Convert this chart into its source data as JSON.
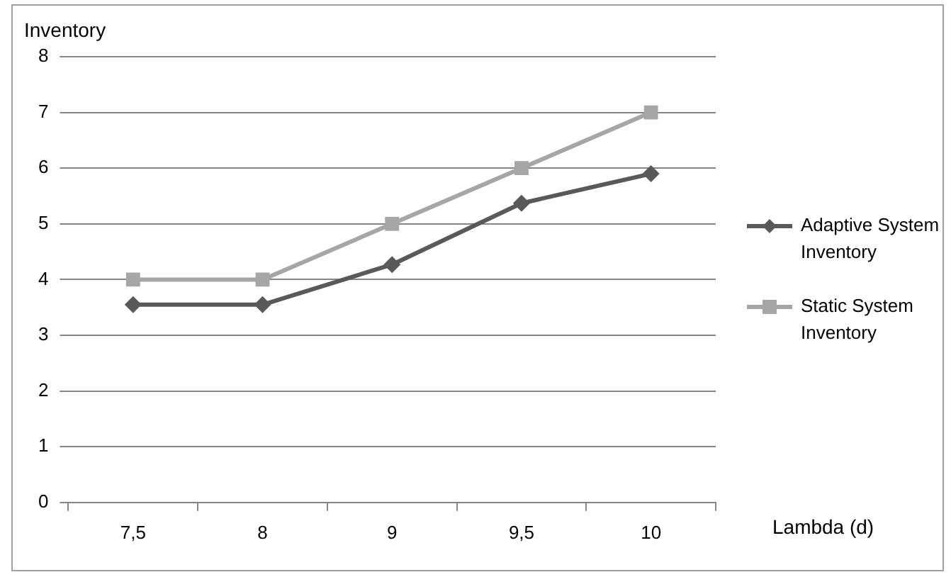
{
  "chart_data": {
    "type": "line",
    "xlabel": "Lambda (d)",
    "ylabel": "Inventory",
    "categories": [
      "7,5",
      "8",
      "9",
      "9,5",
      "10"
    ],
    "series": [
      {
        "name": "Adaptive System Inventory",
        "color": "#595959",
        "marker": "diamond",
        "values": [
          3.55,
          3.55,
          4.27,
          5.37,
          5.9
        ]
      },
      {
        "name": "Static System Inventory",
        "color": "#a6a6a6",
        "marker": "square",
        "values": [
          4,
          4,
          5,
          6,
          7
        ]
      }
    ],
    "ylim": [
      0,
      8
    ],
    "yticks": [
      0,
      1,
      2,
      3,
      4,
      5,
      6,
      7,
      8
    ],
    "grid": "y",
    "legend": "right"
  }
}
